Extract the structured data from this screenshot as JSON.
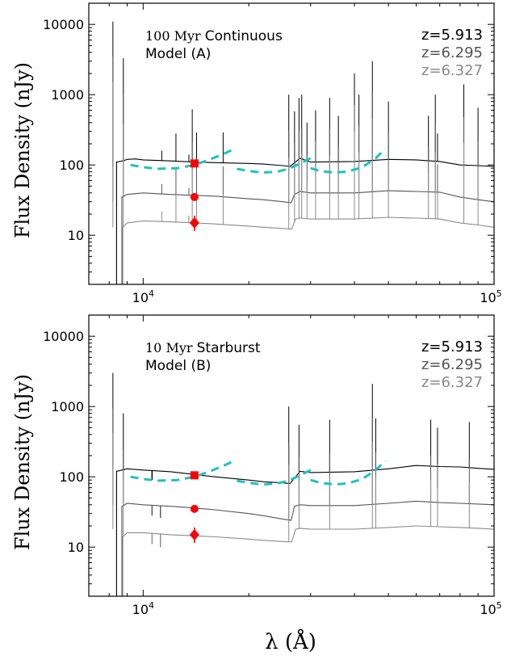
{
  "figure": {
    "ylabel": "Flux Density (nJy)",
    "xlabel": "λ (Å)"
  },
  "chart_data": [
    {
      "type": "line",
      "id": "panel-a",
      "annotation": {
        "prefix": "100 Myr",
        "suffix": "Continuous",
        "line2": "Model (A)"
      },
      "xscale": "log",
      "yscale": "log",
      "xlim": [
        7000,
        100000
      ],
      "ylim": [
        2,
        20000
      ],
      "x_ticks": [
        {
          "value": 10000,
          "base": "10",
          "exp": "4"
        },
        {
          "value": 100000,
          "base": "10",
          "exp": "5"
        }
      ],
      "y_ticks": [
        {
          "value": 10,
          "label": "10"
        },
        {
          "value": 100,
          "label": "100"
        },
        {
          "value": 1000,
          "label": "1000"
        },
        {
          "value": 10000,
          "label": "10000"
        }
      ],
      "legend": {
        "position": "top-right",
        "entries": [
          {
            "label": "z=5.913",
            "color": "#000000"
          },
          {
            "label": "z=6.295",
            "color": "#555555"
          },
          {
            "label": "z=6.327",
            "color": "#8a8a8a"
          }
        ]
      },
      "series": [
        {
          "color": "#000000",
          "break": 8400,
          "x": [
            8420,
            8800,
            9000,
            9500,
            10000,
            12000,
            14000,
            16000,
            20000,
            22000,
            25000,
            26200,
            28000,
            30000,
            40000,
            50000,
            60000,
            70000,
            80000,
            90000,
            100000
          ],
          "y": [
            110,
            115,
            120,
            122,
            118,
            114,
            110,
            108,
            105,
            103,
            98,
            95,
            125,
            110,
            112,
            120,
            118,
            112,
            100,
            98,
            95
          ]
        },
        {
          "color": "#555555",
          "break": 8700,
          "x": [
            8720,
            9000,
            10000,
            12000,
            14000,
            16000,
            20000,
            22000,
            25000,
            26400,
            27000,
            28000,
            30000,
            40000,
            50000,
            60000,
            70000,
            80000,
            90000,
            100000
          ],
          "y": [
            35,
            38,
            40,
            38,
            37,
            36,
            33,
            32,
            30,
            29,
            38,
            42,
            40,
            40,
            43,
            42,
            41,
            35,
            32,
            30
          ]
        },
        {
          "color": "#8a8a8a",
          "break": 8750,
          "x": [
            8760,
            9000,
            10000,
            12000,
            14000,
            16000,
            20000,
            22000,
            25000,
            26500,
            27200,
            28000,
            30000,
            40000,
            50000,
            60000,
            70000,
            80000,
            90000,
            100000
          ],
          "y": [
            13,
            15,
            16,
            15.5,
            15,
            14.5,
            13.5,
            13,
            12.5,
            12.2,
            17,
            17.5,
            17,
            17,
            18,
            17.5,
            17,
            15,
            14,
            13
          ]
        }
      ],
      "emission_lines": [
        {
          "x": 8200,
          "top": 11000,
          "series": 0
        },
        {
          "x": 8780,
          "top": 3300,
          "series": 0
        },
        {
          "x": 11300,
          "top": 160,
          "series": 0
        },
        {
          "x": 12400,
          "top": 280,
          "series": 0
        },
        {
          "x": 13500,
          "top": 140,
          "series": 0
        },
        {
          "x": 13800,
          "top": 620,
          "series": 0
        },
        {
          "x": 14200,
          "top": 290,
          "series": 0
        },
        {
          "x": 16900,
          "top": 290,
          "series": 0
        },
        {
          "x": 26000,
          "top": 1000,
          "series": 0
        },
        {
          "x": 27000,
          "top": 580,
          "series": 0
        },
        {
          "x": 27800,
          "top": 900,
          "series": 0
        },
        {
          "x": 28300,
          "top": 1000,
          "series": 0
        },
        {
          "x": 29300,
          "top": 400,
          "series": 0
        },
        {
          "x": 31000,
          "top": 600,
          "series": 0
        },
        {
          "x": 34000,
          "top": 900,
          "series": 0
        },
        {
          "x": 36000,
          "top": 500,
          "series": 0
        },
        {
          "x": 40000,
          "top": 2000,
          "series": 0
        },
        {
          "x": 41200,
          "top": 1000,
          "series": 0
        },
        {
          "x": 45000,
          "top": 3000,
          "series": 0
        },
        {
          "x": 50000,
          "top": 800,
          "series": 0
        },
        {
          "x": 65000,
          "top": 500,
          "series": 0
        },
        {
          "x": 68000,
          "top": 1000,
          "series": 0
        },
        {
          "x": 69000,
          "top": 280,
          "series": 0
        },
        {
          "x": 82000,
          "top": 1400,
          "series": 0
        },
        {
          "x": 90000,
          "top": 650,
          "series": 0
        }
      ],
      "filters": [
        {
          "x": [
            9200,
            10000,
            11000,
            12500,
            14000,
            15500,
            17000,
            18000
          ],
          "y": [
            100,
            93,
            88,
            90,
            100,
            120,
            145,
            165
          ]
        },
        {
          "x": [
            18500,
            20000,
            22000,
            24000,
            26000,
            28000,
            30000,
            31000
          ],
          "y": [
            88,
            82,
            78,
            80,
            88,
            105,
            125,
            135
          ]
        },
        {
          "x": [
            30000,
            32000,
            35000,
            38000,
            42000,
            46000,
            49000
          ],
          "y": [
            90,
            82,
            78,
            80,
            92,
            125,
            170
          ]
        }
      ],
      "points": [
        {
          "x": 14000,
          "y": 105,
          "err": [
            96,
            112
          ],
          "marker": "square",
          "color": "#ff0000"
        },
        {
          "x": 14000,
          "y": 35,
          "err": [
            31,
            39
          ],
          "marker": "circle",
          "color": "#ff0000"
        },
        {
          "x": 14000,
          "y": 15,
          "err": [
            11.5,
            19
          ],
          "marker": "diamond",
          "color": "#ff0000"
        }
      ]
    },
    {
      "type": "line",
      "id": "panel-b",
      "annotation": {
        "prefix": "10 Myr",
        "suffix": "Starburst",
        "line2": "Model (B)"
      },
      "xscale": "log",
      "yscale": "log",
      "xlim": [
        7000,
        100000
      ],
      "ylim": [
        2,
        20000
      ],
      "x_ticks": [
        {
          "value": 10000,
          "base": "10",
          "exp": "4"
        },
        {
          "value": 100000,
          "base": "10",
          "exp": "5"
        }
      ],
      "y_ticks": [
        {
          "value": 10,
          "label": "10"
        },
        {
          "value": 100,
          "label": "100"
        },
        {
          "value": 1000,
          "label": "1000"
        },
        {
          "value": 10000,
          "label": "10000"
        }
      ],
      "legend": {
        "position": "top-right",
        "entries": [
          {
            "label": "z=5.913",
            "color": "#000000"
          },
          {
            "label": "z=6.295",
            "color": "#555555"
          },
          {
            "label": "z=6.327",
            "color": "#8a8a8a"
          }
        ]
      },
      "series": [
        {
          "color": "#000000",
          "break": 8400,
          "x": [
            8420,
            9000,
            10000,
            12000,
            14000,
            16000,
            20000,
            22000,
            25000,
            26200,
            28000,
            30000,
            40000,
            50000,
            60000,
            70000,
            80000,
            90000,
            100000
          ],
          "y": [
            120,
            130,
            125,
            118,
            108,
            100,
            90,
            85,
            82,
            80,
            120,
            115,
            118,
            130,
            145,
            140,
            138,
            132,
            128
          ]
        },
        {
          "color": "#555555",
          "break": 8700,
          "x": [
            8720,
            9000,
            10000,
            12000,
            14000,
            16000,
            20000,
            22000,
            25000,
            26400,
            27000,
            28000,
            30000,
            40000,
            50000,
            60000,
            70000,
            80000,
            90000,
            100000
          ],
          "y": [
            38,
            42,
            40,
            38,
            36,
            34,
            30,
            28,
            25,
            24,
            38,
            40,
            39,
            39,
            42,
            45,
            43,
            42,
            41,
            40
          ]
        },
        {
          "color": "#8a8a8a",
          "break": 8750,
          "x": [
            8760,
            9000,
            10000,
            12000,
            14000,
            16000,
            20000,
            22000,
            25000,
            26500,
            27200,
            28000,
            30000,
            40000,
            50000,
            60000,
            70000,
            80000,
            90000,
            100000
          ],
          "y": [
            14,
            16,
            16,
            15,
            14.5,
            14,
            13,
            12.5,
            12,
            11.8,
            18,
            18.5,
            18,
            18,
            19,
            20,
            19.5,
            19,
            18.5,
            18
          ]
        }
      ],
      "emission_lines": [
        {
          "x": 8200,
          "top": 3000,
          "series": 0
        },
        {
          "x": 8780,
          "top": 800,
          "series": 0
        },
        {
          "x": 26000,
          "top": 1000,
          "series": 0
        },
        {
          "x": 27800,
          "top": 550,
          "series": 0
        },
        {
          "x": 34000,
          "top": 650,
          "series": 0
        },
        {
          "x": 45000,
          "top": 2100,
          "series": 0
        },
        {
          "x": 46000,
          "top": 680,
          "series": 0
        },
        {
          "x": 66000,
          "top": 650,
          "series": 0
        },
        {
          "x": 69000,
          "top": 500,
          "series": 0
        },
        {
          "x": 85000,
          "top": 600,
          "series": 0
        }
      ],
      "absorption_lines": [
        {
          "x": 10600,
          "bottom": 90,
          "series": 0
        },
        {
          "x": 10600,
          "bottom": 28,
          "series": 1
        },
        {
          "x": 11200,
          "bottom": 26,
          "series": 1
        },
        {
          "x": 10600,
          "bottom": 11,
          "series": 2
        },
        {
          "x": 11200,
          "bottom": 10,
          "series": 2
        }
      ],
      "filters": [
        {
          "x": [
            9200,
            10000,
            11000,
            12500,
            14000,
            15500,
            17000,
            18000
          ],
          "y": [
            100,
            93,
            88,
            90,
            100,
            120,
            145,
            165
          ]
        },
        {
          "x": [
            18500,
            20000,
            22000,
            24000,
            26000,
            28000,
            30000,
            31000
          ],
          "y": [
            88,
            82,
            78,
            80,
            88,
            105,
            125,
            135
          ]
        },
        {
          "x": [
            30000,
            32000,
            35000,
            38000,
            42000,
            46000,
            49000
          ],
          "y": [
            90,
            82,
            78,
            80,
            92,
            125,
            170
          ]
        }
      ],
      "points": [
        {
          "x": 14000,
          "y": 105,
          "err": [
            96,
            112
          ],
          "marker": "square",
          "color": "#ff0000"
        },
        {
          "x": 14000,
          "y": 35,
          "err": [
            31,
            39
          ],
          "marker": "circle",
          "color": "#ff0000"
        },
        {
          "x": 14000,
          "y": 15,
          "err": [
            11.5,
            19
          ],
          "marker": "diamond",
          "color": "#ff0000"
        }
      ]
    }
  ],
  "style": {
    "filter_color": "#20c0c0",
    "marker_color": "#ff0000"
  }
}
